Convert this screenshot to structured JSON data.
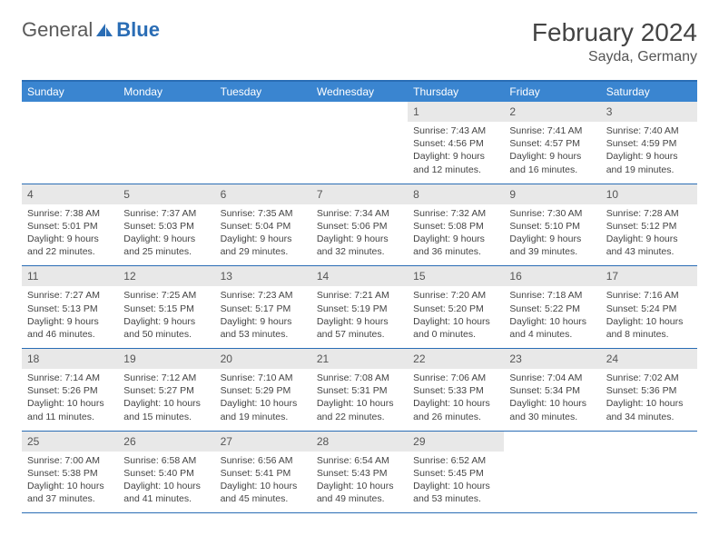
{
  "logo": {
    "text1": "General",
    "text2": "Blue"
  },
  "title": "February 2024",
  "location": "Sayda, Germany",
  "colors": {
    "header_bg": "#3a85d0",
    "border": "#2a6db5",
    "daynum_bg": "#e8e8e8",
    "text": "#444444",
    "logo_gray": "#5a5a5a",
    "logo_blue": "#2a6db5"
  },
  "day_names": [
    "Sunday",
    "Monday",
    "Tuesday",
    "Wednesday",
    "Thursday",
    "Friday",
    "Saturday"
  ],
  "weeks": [
    [
      {
        "n": "",
        "sr": "",
        "ss": "",
        "dl": ""
      },
      {
        "n": "",
        "sr": "",
        "ss": "",
        "dl": ""
      },
      {
        "n": "",
        "sr": "",
        "ss": "",
        "dl": ""
      },
      {
        "n": "",
        "sr": "",
        "ss": "",
        "dl": ""
      },
      {
        "n": "1",
        "sr": "Sunrise: 7:43 AM",
        "ss": "Sunset: 4:56 PM",
        "dl": "Daylight: 9 hours and 12 minutes."
      },
      {
        "n": "2",
        "sr": "Sunrise: 7:41 AM",
        "ss": "Sunset: 4:57 PM",
        "dl": "Daylight: 9 hours and 16 minutes."
      },
      {
        "n": "3",
        "sr": "Sunrise: 7:40 AM",
        "ss": "Sunset: 4:59 PM",
        "dl": "Daylight: 9 hours and 19 minutes."
      }
    ],
    [
      {
        "n": "4",
        "sr": "Sunrise: 7:38 AM",
        "ss": "Sunset: 5:01 PM",
        "dl": "Daylight: 9 hours and 22 minutes."
      },
      {
        "n": "5",
        "sr": "Sunrise: 7:37 AM",
        "ss": "Sunset: 5:03 PM",
        "dl": "Daylight: 9 hours and 25 minutes."
      },
      {
        "n": "6",
        "sr": "Sunrise: 7:35 AM",
        "ss": "Sunset: 5:04 PM",
        "dl": "Daylight: 9 hours and 29 minutes."
      },
      {
        "n": "7",
        "sr": "Sunrise: 7:34 AM",
        "ss": "Sunset: 5:06 PM",
        "dl": "Daylight: 9 hours and 32 minutes."
      },
      {
        "n": "8",
        "sr": "Sunrise: 7:32 AM",
        "ss": "Sunset: 5:08 PM",
        "dl": "Daylight: 9 hours and 36 minutes."
      },
      {
        "n": "9",
        "sr": "Sunrise: 7:30 AM",
        "ss": "Sunset: 5:10 PM",
        "dl": "Daylight: 9 hours and 39 minutes."
      },
      {
        "n": "10",
        "sr": "Sunrise: 7:28 AM",
        "ss": "Sunset: 5:12 PM",
        "dl": "Daylight: 9 hours and 43 minutes."
      }
    ],
    [
      {
        "n": "11",
        "sr": "Sunrise: 7:27 AM",
        "ss": "Sunset: 5:13 PM",
        "dl": "Daylight: 9 hours and 46 minutes."
      },
      {
        "n": "12",
        "sr": "Sunrise: 7:25 AM",
        "ss": "Sunset: 5:15 PM",
        "dl": "Daylight: 9 hours and 50 minutes."
      },
      {
        "n": "13",
        "sr": "Sunrise: 7:23 AM",
        "ss": "Sunset: 5:17 PM",
        "dl": "Daylight: 9 hours and 53 minutes."
      },
      {
        "n": "14",
        "sr": "Sunrise: 7:21 AM",
        "ss": "Sunset: 5:19 PM",
        "dl": "Daylight: 9 hours and 57 minutes."
      },
      {
        "n": "15",
        "sr": "Sunrise: 7:20 AM",
        "ss": "Sunset: 5:20 PM",
        "dl": "Daylight: 10 hours and 0 minutes."
      },
      {
        "n": "16",
        "sr": "Sunrise: 7:18 AM",
        "ss": "Sunset: 5:22 PM",
        "dl": "Daylight: 10 hours and 4 minutes."
      },
      {
        "n": "17",
        "sr": "Sunrise: 7:16 AM",
        "ss": "Sunset: 5:24 PM",
        "dl": "Daylight: 10 hours and 8 minutes."
      }
    ],
    [
      {
        "n": "18",
        "sr": "Sunrise: 7:14 AM",
        "ss": "Sunset: 5:26 PM",
        "dl": "Daylight: 10 hours and 11 minutes."
      },
      {
        "n": "19",
        "sr": "Sunrise: 7:12 AM",
        "ss": "Sunset: 5:27 PM",
        "dl": "Daylight: 10 hours and 15 minutes."
      },
      {
        "n": "20",
        "sr": "Sunrise: 7:10 AM",
        "ss": "Sunset: 5:29 PM",
        "dl": "Daylight: 10 hours and 19 minutes."
      },
      {
        "n": "21",
        "sr": "Sunrise: 7:08 AM",
        "ss": "Sunset: 5:31 PM",
        "dl": "Daylight: 10 hours and 22 minutes."
      },
      {
        "n": "22",
        "sr": "Sunrise: 7:06 AM",
        "ss": "Sunset: 5:33 PM",
        "dl": "Daylight: 10 hours and 26 minutes."
      },
      {
        "n": "23",
        "sr": "Sunrise: 7:04 AM",
        "ss": "Sunset: 5:34 PM",
        "dl": "Daylight: 10 hours and 30 minutes."
      },
      {
        "n": "24",
        "sr": "Sunrise: 7:02 AM",
        "ss": "Sunset: 5:36 PM",
        "dl": "Daylight: 10 hours and 34 minutes."
      }
    ],
    [
      {
        "n": "25",
        "sr": "Sunrise: 7:00 AM",
        "ss": "Sunset: 5:38 PM",
        "dl": "Daylight: 10 hours and 37 minutes."
      },
      {
        "n": "26",
        "sr": "Sunrise: 6:58 AM",
        "ss": "Sunset: 5:40 PM",
        "dl": "Daylight: 10 hours and 41 minutes."
      },
      {
        "n": "27",
        "sr": "Sunrise: 6:56 AM",
        "ss": "Sunset: 5:41 PM",
        "dl": "Daylight: 10 hours and 45 minutes."
      },
      {
        "n": "28",
        "sr": "Sunrise: 6:54 AM",
        "ss": "Sunset: 5:43 PM",
        "dl": "Daylight: 10 hours and 49 minutes."
      },
      {
        "n": "29",
        "sr": "Sunrise: 6:52 AM",
        "ss": "Sunset: 5:45 PM",
        "dl": "Daylight: 10 hours and 53 minutes."
      },
      {
        "n": "",
        "sr": "",
        "ss": "",
        "dl": ""
      },
      {
        "n": "",
        "sr": "",
        "ss": "",
        "dl": ""
      }
    ]
  ]
}
